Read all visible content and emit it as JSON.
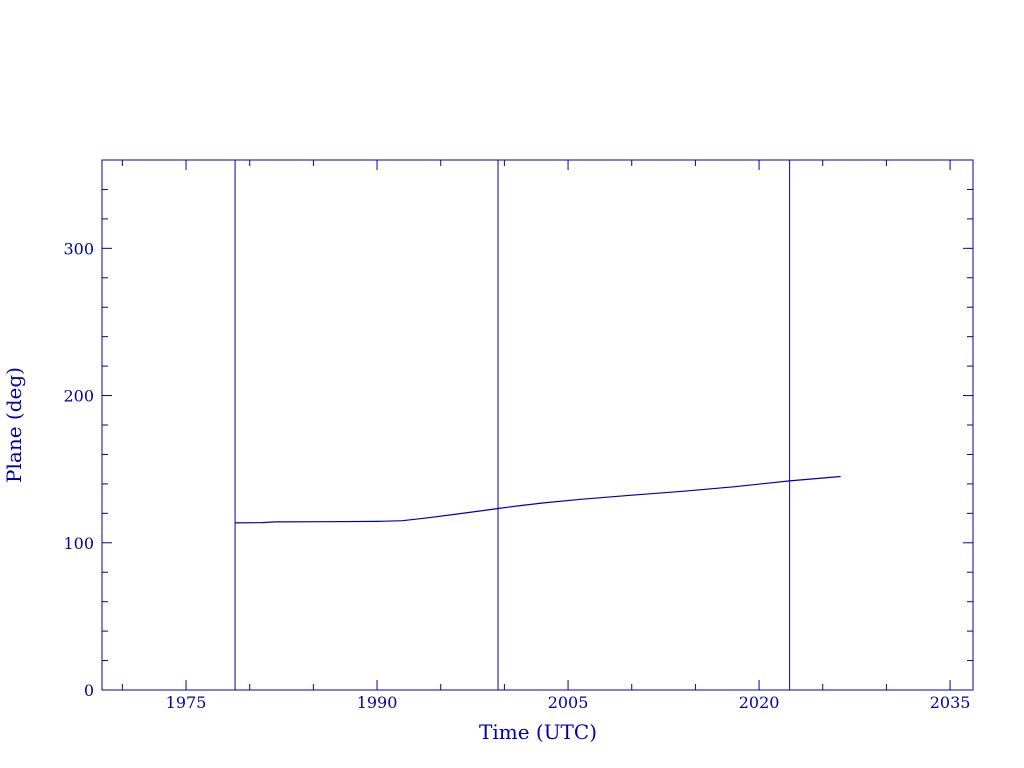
{
  "chart_data": {
    "type": "line",
    "title": "",
    "xlabel": "Time (UTC)",
    "ylabel": "Plane (deg)",
    "xlim": [
      1968.4,
      2036.8
    ],
    "ylim": [
      0,
      360
    ],
    "x_ticks": [
      1975,
      1990,
      2005,
      2020,
      2035
    ],
    "x_tick_labels": [
      "1975",
      "1990",
      "2005",
      "2020",
      "2035"
    ],
    "x_minor_step": 5,
    "y_ticks": [
      0,
      100,
      200,
      300
    ],
    "y_tick_labels": [
      "0",
      "100",
      "200",
      "300"
    ],
    "y_minor_step": 20,
    "grid": false,
    "color": "#0000a8",
    "vertical_lines": [
      1978.85,
      1999.5,
      2022.4
    ],
    "series": [
      {
        "x": [
          1978.85,
          1981,
          1982,
          1986,
          1990,
          1992,
          1994,
          1996,
          1998,
          1999.5,
          2001,
          2003,
          2006,
          2010,
          2014,
          2018,
          2022.4,
          2026.4
        ],
        "y": [
          113.5,
          113.7,
          114.2,
          114.3,
          114.5,
          115,
          117,
          119.2,
          121.5,
          123.3,
          125,
          127,
          129.5,
          132.3,
          135,
          138,
          142,
          145
        ]
      }
    ]
  }
}
